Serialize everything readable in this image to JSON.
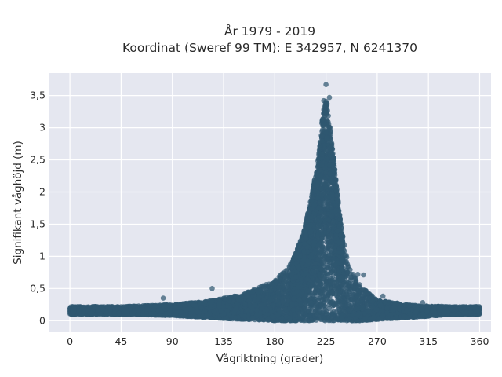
{
  "chart_data": {
    "type": "scatter",
    "title_line1": "År 1979 - 2019",
    "title_line2": "Koordinat (Sweref 99 TM): E 342957, N 6241370",
    "xlabel": "Vågriktning (grader)",
    "ylabel": "Signifikant våghöjd (m)",
    "xlim": [
      -18,
      370
    ],
    "ylim": [
      -0.18,
      3.85
    ],
    "xticks": [
      0,
      45,
      90,
      135,
      180,
      225,
      270,
      315,
      360
    ],
    "xtick_labels": [
      "0",
      "45",
      "90",
      "135",
      "180",
      "225",
      "270",
      "315",
      "360"
    ],
    "yticks": [
      0,
      0.5,
      1,
      1.5,
      2,
      2.5,
      3,
      3.5
    ],
    "ytick_labels": [
      "0",
      "0,5",
      "1",
      "1,5",
      "2",
      "2,5",
      "3",
      "3,5"
    ],
    "grid": true,
    "marker_color": "#2f5870",
    "background_color": "#e5e7f0",
    "envelope": {
      "x": [
        0,
        45,
        90,
        120,
        150,
        180,
        195,
        205,
        212,
        218,
        222,
        225,
        228,
        232,
        238,
        245,
        255,
        270,
        300,
        330,
        360
      ],
      "y_max": [
        0.22,
        0.22,
        0.25,
        0.3,
        0.4,
        0.62,
        0.9,
        1.35,
        1.9,
        2.5,
        3.2,
        3.45,
        3.1,
        2.5,
        1.5,
        0.85,
        0.55,
        0.32,
        0.24,
        0.22,
        0.22
      ],
      "y_min": [
        0.1,
        0.1,
        0.08,
        0.05,
        0.02,
        0,
        0,
        0,
        0,
        0,
        0,
        0,
        0,
        0,
        0,
        0,
        0,
        0.02,
        0.05,
        0.09,
        0.1
      ]
    },
    "points": [
      {
        "x": 225,
        "y": 3.67
      },
      {
        "x": 228,
        "y": 3.47
      },
      {
        "x": 223,
        "y": 3.42
      },
      {
        "x": 226,
        "y": 3.37
      },
      {
        "x": 222,
        "y": 3.13
      },
      {
        "x": 229,
        "y": 2.95
      },
      {
        "x": 218,
        "y": 2.15
      },
      {
        "x": 253,
        "y": 0.72
      },
      {
        "x": 258,
        "y": 0.71
      },
      {
        "x": 82,
        "y": 0.35
      },
      {
        "x": 125,
        "y": 0.5
      },
      {
        "x": 160,
        "y": 0.45
      },
      {
        "x": 310,
        "y": 0.28
      },
      {
        "x": 275,
        "y": 0.38
      }
    ]
  }
}
